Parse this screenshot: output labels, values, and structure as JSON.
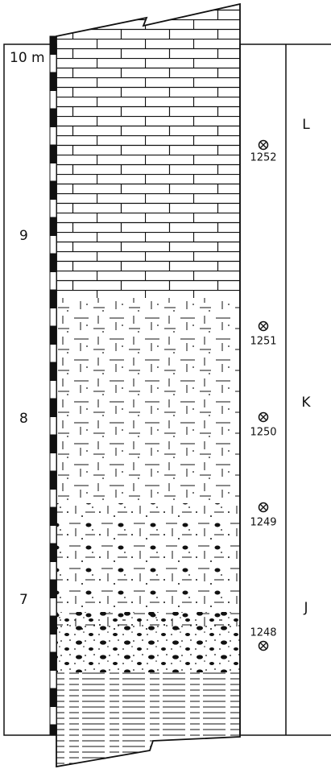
{
  "scale": {
    "labels": [
      "10 m",
      "9",
      "8",
      "7"
    ]
  },
  "units": [
    "L",
    "K",
    "J"
  ],
  "samples": [
    "1252",
    "1251",
    "1250",
    "1249",
    "1248"
  ]
}
